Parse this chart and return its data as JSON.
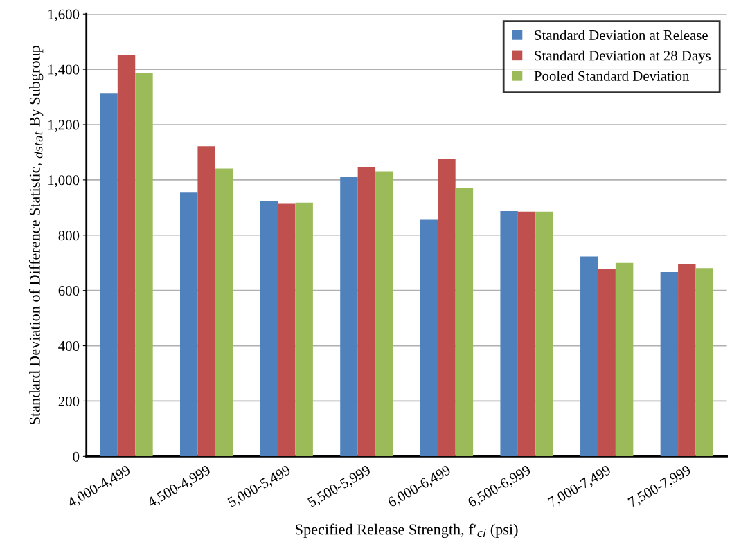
{
  "chart_data": {
    "type": "bar",
    "xlabel": "Specified Release Strength, f′$_{ci}$ (psi)",
    "ylabel": "Standard Deviation of Difference Statistic, $_{dstat}$ By Subgroup",
    "categories": [
      "4,000-4,499",
      "4,500-4,999",
      "5,000-5,499",
      "5,500-5,999",
      "6,000-6,499",
      "6,500-6,999",
      "7,000-7,499",
      "7,500-7,999"
    ],
    "series": [
      {
        "name": "Standard Deviation at Release",
        "color": "#4f81bd",
        "values": [
          1312,
          954,
          922,
          1012,
          856,
          887,
          723,
          667
        ]
      },
      {
        "name": "Standard Deviation at 28 Days",
        "color": "#c0504d",
        "values": [
          1453,
          1122,
          916,
          1047,
          1075,
          885,
          679,
          696
        ]
      },
      {
        "name": "Pooled Standard Deviation",
        "color": "#9bbb59",
        "values": [
          1385,
          1041,
          918,
          1031,
          971,
          885,
          700,
          681
        ]
      }
    ],
    "ylim": [
      0,
      1600
    ],
    "yticks": [
      {
        "value": 0,
        "label": "0"
      },
      {
        "value": 200,
        "label": "200"
      },
      {
        "value": 400,
        "label": "400"
      },
      {
        "value": 600,
        "label": "600"
      },
      {
        "value": 800,
        "label": "800"
      },
      {
        "value": 1000,
        "label": "1,000"
      },
      {
        "value": 1200,
        "label": "1,200"
      },
      {
        "value": 1400,
        "label": "1,400"
      },
      {
        "value": 1600,
        "label": "1,600"
      }
    ],
    "grid": "y",
    "legend": "top right"
  }
}
